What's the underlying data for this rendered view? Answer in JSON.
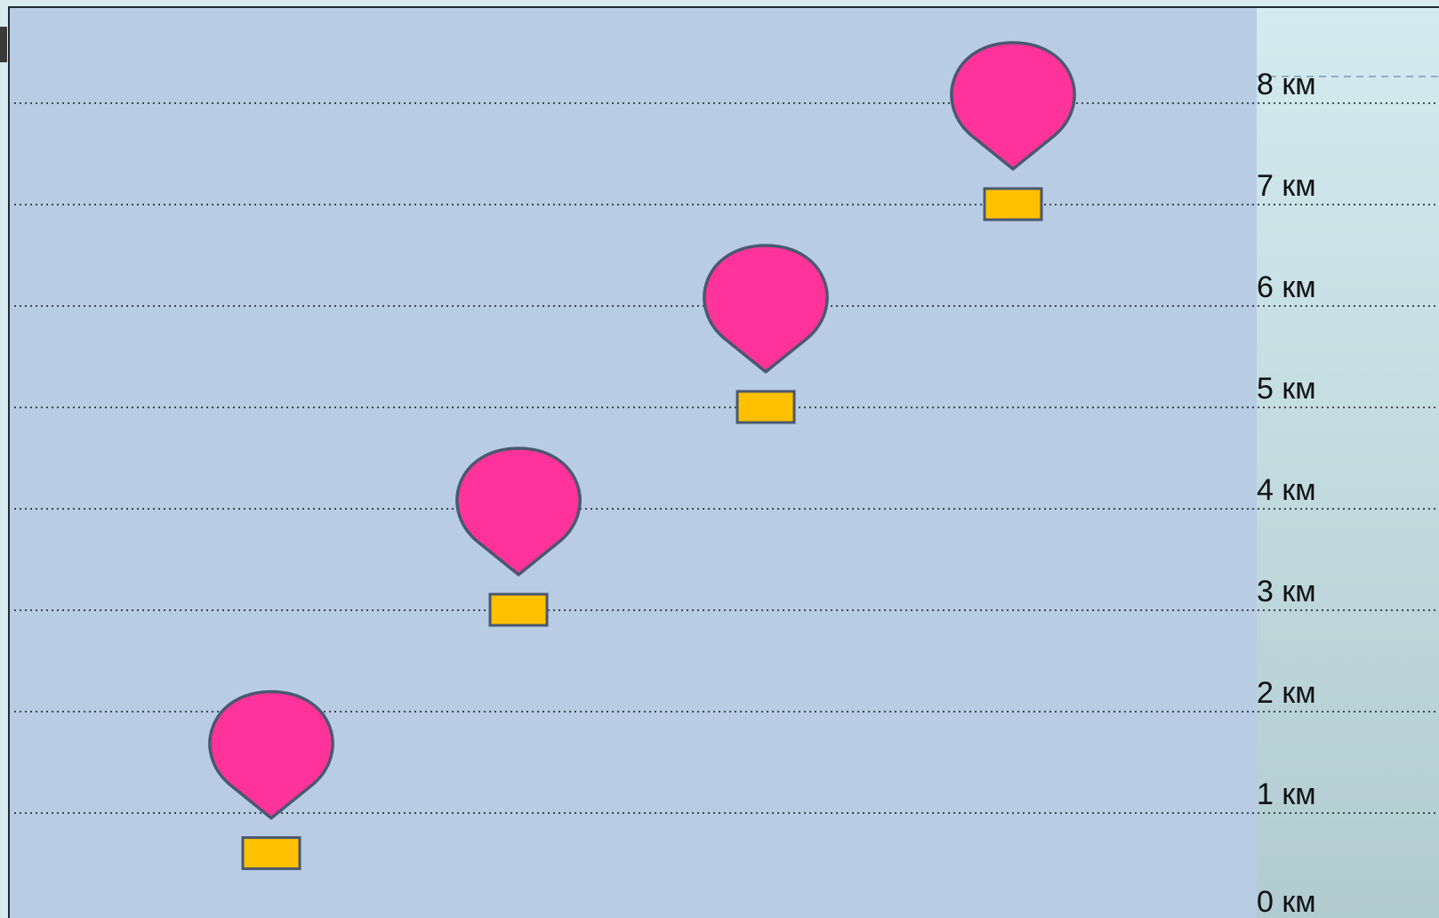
{
  "colors": {
    "page_background": "#d6eaf0",
    "sky_panel": "#b8cce4",
    "scale_strip_top": "#d3ebf0",
    "scale_strip_bottom": "#b1ccd1",
    "frame": "#1f2a30",
    "gridline": "#1a1a1a",
    "balloon_fill": "#ff3399",
    "basket_fill": "#ffc000",
    "outline": "#4a5870"
  },
  "levels": [
    {
      "value": 0,
      "label": "0 км"
    },
    {
      "value": 1,
      "label": "1 км"
    },
    {
      "value": 2,
      "label": "2 км"
    },
    {
      "value": 3,
      "label": "3 км"
    },
    {
      "value": 4,
      "label": "4 км"
    },
    {
      "value": 5,
      "label": "5 км"
    },
    {
      "value": 6,
      "label": "6 км"
    },
    {
      "value": 7,
      "label": "7 км"
    },
    {
      "value": 8,
      "label": "8 км"
    }
  ],
  "balloons": [
    {
      "name": "balloon-1",
      "altitude_km": 0.6
    },
    {
      "name": "balloon-2",
      "altitude_km": 3.0
    },
    {
      "name": "balloon-3",
      "altitude_km": 5.0
    },
    {
      "name": "balloon-4",
      "altitude_km": 7.0
    }
  ]
}
